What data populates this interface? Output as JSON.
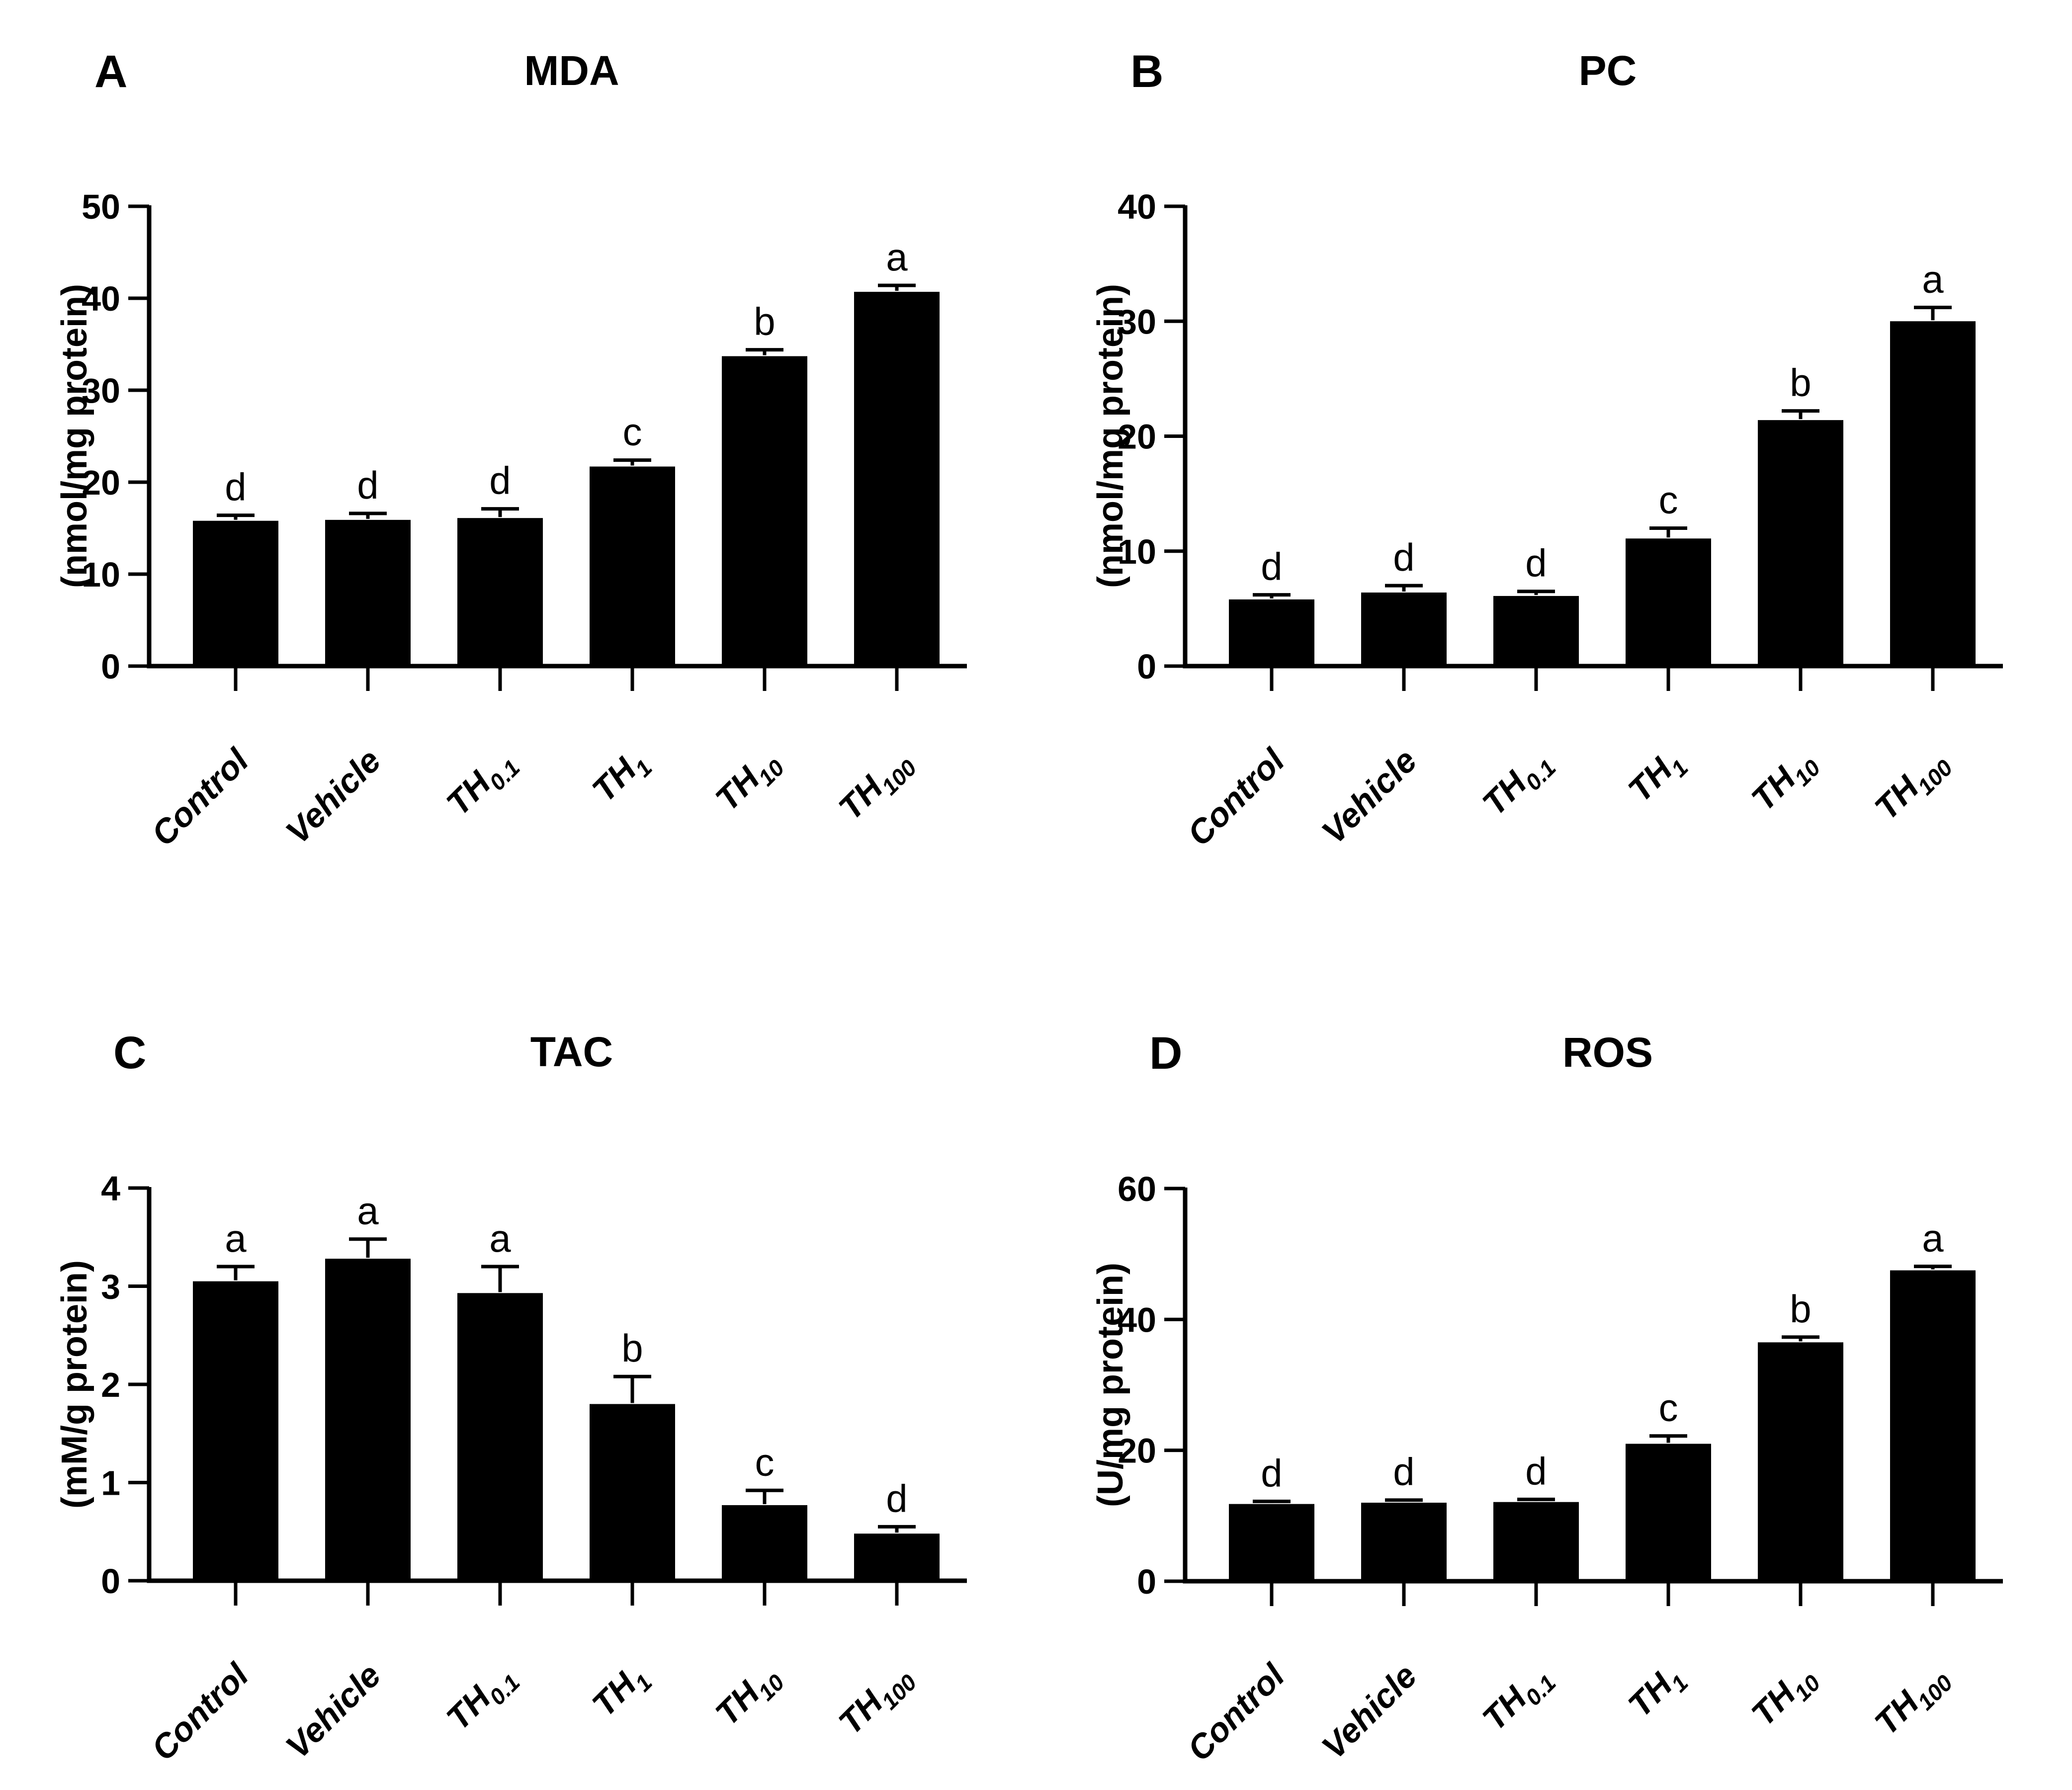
{
  "figure": {
    "background": "#ffffff",
    "bar_color": "#000000",
    "axis_color": "#000000",
    "text_color": "#000000"
  },
  "chart_data": [
    {
      "panel_label": "A",
      "type": "bar",
      "title": "MDA",
      "ylabel": "(nmol/mg protein)",
      "ylim": [
        0,
        50
      ],
      "ytick_step": 10,
      "grid": false,
      "legend_position": "none",
      "categories": [
        {
          "text": "Control",
          "sub": ""
        },
        {
          "text": "Vehicle",
          "sub": ""
        },
        {
          "text": "TH",
          "sub": "0.1"
        },
        {
          "text": "TH",
          "sub": "1"
        },
        {
          "text": "TH",
          "sub": "10"
        },
        {
          "text": "TH",
          "sub": "100"
        }
      ],
      "values": [
        15.8,
        15.9,
        16.1,
        21.7,
        33.7,
        40.7
      ],
      "errors": [
        0.6,
        0.7,
        1.0,
        0.7,
        0.7,
        0.7
      ],
      "sig_letters": [
        "d",
        "d",
        "d",
        "c",
        "b",
        "a"
      ]
    },
    {
      "panel_label": "B",
      "type": "bar",
      "title": "PC",
      "ylabel": "(nmol/mg protein)",
      "ylim": [
        0,
        40
      ],
      "ytick_step": 10,
      "grid": false,
      "legend_position": "none",
      "categories": [
        {
          "text": "Control",
          "sub": ""
        },
        {
          "text": "Vehicle",
          "sub": ""
        },
        {
          "text": "TH",
          "sub": "0.1"
        },
        {
          "text": "TH",
          "sub": "1"
        },
        {
          "text": "TH",
          "sub": "10"
        },
        {
          "text": "TH",
          "sub": "100"
        }
      ],
      "values": [
        5.8,
        6.4,
        6.1,
        11.1,
        21.4,
        30.0
      ],
      "errors": [
        0.4,
        0.6,
        0.4,
        0.9,
        0.8,
        1.2
      ],
      "sig_letters": [
        "d",
        "d",
        "d",
        "c",
        "b",
        "a"
      ]
    },
    {
      "panel_label": "C",
      "type": "bar",
      "title": "TAC",
      "ylabel": "(mM/g protein)",
      "ylim": [
        0,
        4
      ],
      "ytick_step": 1,
      "grid": false,
      "legend_position": "none",
      "categories": [
        {
          "text": "Control",
          "sub": ""
        },
        {
          "text": "Vehicle",
          "sub": ""
        },
        {
          "text": "TH",
          "sub": "0.1"
        },
        {
          "text": "TH",
          "sub": "1"
        },
        {
          "text": "TH",
          "sub": "10"
        },
        {
          "text": "TH",
          "sub": "100"
        }
      ],
      "values": [
        3.05,
        3.28,
        2.93,
        1.8,
        0.77,
        0.48
      ],
      "errors": [
        0.15,
        0.2,
        0.27,
        0.28,
        0.15,
        0.07
      ],
      "sig_letters": [
        "a",
        "a",
        "a",
        "b",
        "c",
        "d"
      ]
    },
    {
      "panel_label": "D",
      "type": "bar",
      "title": "ROS",
      "ylabel": "(U/mg protein)",
      "ylim": [
        0,
        60
      ],
      "ytick_step": 20,
      "grid": false,
      "legend_position": "none",
      "categories": [
        {
          "text": "Control",
          "sub": ""
        },
        {
          "text": "Vehicle",
          "sub": ""
        },
        {
          "text": "TH",
          "sub": "0.1"
        },
        {
          "text": "TH",
          "sub": "1"
        },
        {
          "text": "TH",
          "sub": "10"
        },
        {
          "text": "TH",
          "sub": "100"
        }
      ],
      "values": [
        11.8,
        12.0,
        12.1,
        21.0,
        36.5,
        47.5
      ],
      "errors": [
        0.4,
        0.4,
        0.4,
        1.2,
        0.8,
        0.6
      ],
      "sig_letters": [
        "d",
        "d",
        "d",
        "c",
        "b",
        "a"
      ]
    }
  ]
}
